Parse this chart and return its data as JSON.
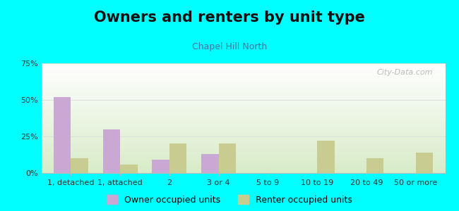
{
  "title": "Owners and renters by unit type",
  "subtitle": "Chapel Hill North",
  "categories": [
    "1, detached",
    "1, attached",
    "2",
    "3 or 4",
    "5 to 9",
    "10 to 19",
    "20 to 49",
    "50 or more"
  ],
  "owner_values": [
    52,
    30,
    9,
    13,
    0,
    0,
    0,
    0
  ],
  "renter_values": [
    10,
    6,
    20,
    20,
    0,
    22,
    10,
    14
  ],
  "owner_color": "#c9a8d4",
  "renter_color": "#c8cc90",
  "ylim": [
    0,
    75
  ],
  "yticks": [
    0,
    25,
    50,
    75
  ],
  "ytick_labels": [
    "0%",
    "25%",
    "50%",
    "75%"
  ],
  "background_color": "#00ffff",
  "plot_bg_color_top": "#ffffff",
  "plot_bg_color_bottom": "#d8ecc8",
  "bar_width": 0.35,
  "title_fontsize": 15,
  "subtitle_fontsize": 9,
  "tick_fontsize": 8,
  "legend_labels": [
    "Owner occupied units",
    "Renter occupied units"
  ],
  "watermark": "City-Data.com"
}
